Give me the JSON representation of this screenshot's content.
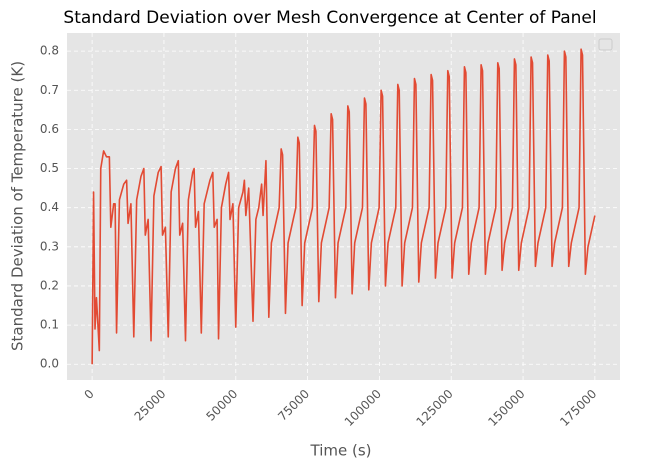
{
  "chart_data": {
    "type": "line",
    "title": "Standard Deviation over Mesh Convergence at Center of Panel",
    "xlabel": "Time (s)",
    "ylabel": "Standard Deviation of Temperature (K)",
    "grid": true,
    "xlim": [
      -8750,
      183750
    ],
    "ylim": [
      -0.0403,
      0.8463
    ],
    "xticks": [
      0,
      25000,
      50000,
      75000,
      100000,
      125000,
      150000,
      175000
    ],
    "yticks": [
      {
        "value": 0,
        "label": "0.0"
      },
      0.1,
      0.2,
      0.3,
      0.4,
      0.5,
      0.6,
      0.7,
      0.8
    ],
    "series": [
      {
        "color": "#E24A33",
        "x": [
          0,
          500,
          1000,
          1500,
          2500,
          3000,
          4000,
          5000,
          6000,
          6500,
          7500,
          8000,
          8500,
          9500,
          11000,
          12000,
          12500,
          13500,
          14500,
          15500,
          17000,
          18000,
          18500,
          19500,
          20500,
          21500,
          23000,
          24000,
          24500,
          25500,
          26500,
          27500,
          29000,
          30000,
          30500,
          31500,
          32500,
          33500,
          35000,
          35500,
          36000,
          37000,
          38000,
          39000,
          41000,
          42000,
          42500,
          43500,
          44000,
          45000,
          46500,
          47500,
          48000,
          49000,
          50000,
          51000,
          52500,
          53000,
          53500,
          54500,
          56000,
          57000,
          58000,
          59000,
          59500,
          60500,
          61500,
          62400,
          65100,
          65800,
          66300,
          67300,
          68200,
          70900,
          71600,
          72100,
          73100,
          74000,
          76700,
          77400,
          77900,
          78900,
          79800,
          82500,
          83200,
          83700,
          84700,
          85600,
          88300,
          89000,
          89500,
          90500,
          91400,
          94100,
          94800,
          95300,
          96300,
          97200,
          99900,
          100600,
          101100,
          102100,
          103000,
          105700,
          106400,
          106900,
          107900,
          108800,
          111500,
          112200,
          112700,
          113700,
          114600,
          117300,
          118000,
          118500,
          119500,
          120400,
          123100,
          123800,
          124300,
          125300,
          126200,
          128900,
          129600,
          130100,
          131100,
          132000,
          134700,
          135400,
          135900,
          136900,
          137800,
          140500,
          141200,
          141700,
          142700,
          143600,
          146300,
          147000,
          147500,
          148500,
          149400,
          152100,
          152800,
          153300,
          154300,
          155200,
          157900,
          158600,
          159100,
          160100,
          161000,
          163700,
          164400,
          164900,
          165900,
          166800,
          169500,
          170200,
          170700,
          171700,
          172600,
          175000
        ],
        "values": [
          0,
          0.44,
          0.09,
          0.17,
          0.035,
          0.5,
          0.545,
          0.53,
          0.53,
          0.35,
          0.41,
          0.41,
          0.08,
          0.42,
          0.46,
          0.47,
          0.36,
          0.41,
          0.07,
          0.42,
          0.48,
          0.5,
          0.33,
          0.37,
          0.06,
          0.43,
          0.49,
          0.505,
          0.33,
          0.35,
          0.07,
          0.44,
          0.5,
          0.52,
          0.33,
          0.36,
          0.06,
          0.42,
          0.49,
          0.5,
          0.35,
          0.39,
          0.08,
          0.41,
          0.47,
          0.49,
          0.35,
          0.37,
          0.065,
          0.4,
          0.46,
          0.49,
          0.37,
          0.41,
          0.095,
          0.4,
          0.44,
          0.47,
          0.38,
          0.45,
          0.11,
          0.37,
          0.4,
          0.46,
          0.38,
          0.52,
          0.12,
          0.31,
          0.4,
          0.55,
          0.535,
          0.13,
          0.31,
          0.4,
          0.58,
          0.565,
          0.15,
          0.31,
          0.4,
          0.61,
          0.595,
          0.16,
          0.31,
          0.4,
          0.64,
          0.625,
          0.17,
          0.31,
          0.4,
          0.66,
          0.645,
          0.18,
          0.31,
          0.4,
          0.68,
          0.665,
          0.19,
          0.31,
          0.4,
          0.7,
          0.685,
          0.2,
          0.31,
          0.4,
          0.715,
          0.7,
          0.2,
          0.31,
          0.4,
          0.73,
          0.715,
          0.21,
          0.31,
          0.4,
          0.74,
          0.725,
          0.22,
          0.31,
          0.4,
          0.75,
          0.735,
          0.22,
          0.31,
          0.4,
          0.76,
          0.745,
          0.23,
          0.31,
          0.4,
          0.765,
          0.75,
          0.23,
          0.31,
          0.4,
          0.77,
          0.755,
          0.24,
          0.31,
          0.4,
          0.78,
          0.765,
          0.24,
          0.31,
          0.4,
          0.785,
          0.77,
          0.25,
          0.31,
          0.4,
          0.79,
          0.775,
          0.25,
          0.31,
          0.4,
          0.8,
          0.785,
          0.25,
          0.31,
          0.4,
          0.805,
          0.79,
          0.23,
          0.3,
          0.38
        ]
      }
    ]
  }
}
